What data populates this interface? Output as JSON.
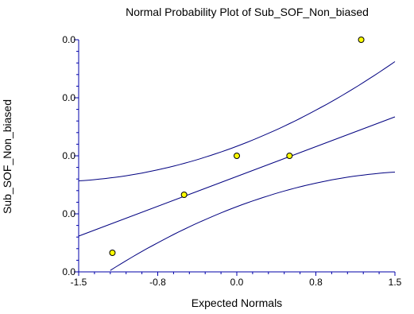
{
  "chart_data": {
    "type": "scatter",
    "title": "Normal Probability Plot of Sub_SOF_Non_biased",
    "xlabel": "Expected Normals",
    "ylabel": "Sub_SOF_Non_biased",
    "xlim": [
      -1.5,
      1.5
    ],
    "x_ticks": [
      "-1.5",
      "-0.8",
      "0.0",
      "0.8",
      "1.5"
    ],
    "y_ticks": [
      "0.0",
      "0.0",
      "0.0",
      "0.0",
      "0.0"
    ],
    "grid": false,
    "legend": "none",
    "points": [
      {
        "x": -1.18,
        "y": 0.0
      },
      {
        "x": -0.5,
        "y": 0.0
      },
      {
        "x": 0.0,
        "y": 0.0
      },
      {
        "x": 0.5,
        "y": 0.0
      },
      {
        "x": 1.18,
        "y": 0.0
      }
    ],
    "colors": {
      "axis": "#0000aa",
      "lines": "#000080",
      "point_fill": "#ffff00",
      "point_stroke": "#000000"
    }
  }
}
